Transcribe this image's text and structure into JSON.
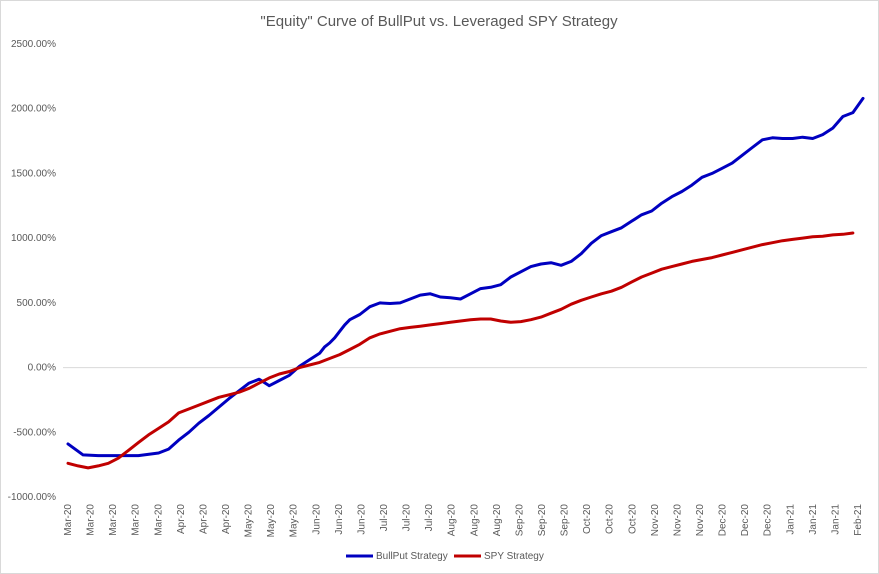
{
  "chart_data": {
    "type": "line",
    "title": "\"Equity\" Curve of BullPut vs. Leveraged SPY Strategy",
    "xlabel": "",
    "ylabel": "",
    "ylim": [
      -1000,
      2500
    ],
    "yticks": [
      -1000,
      -500,
      0,
      500,
      1000,
      1500,
      2000,
      2500
    ],
    "ytick_labels": [
      "-1000.00%",
      "-500.00%",
      "0.00%",
      "500.00%",
      "1000.00%",
      "1500.00%",
      "2000.00%",
      "2500.00%"
    ],
    "grid": false,
    "legend_position": "bottom",
    "categories": [
      "Mar-20",
      "Mar-20",
      "Mar-20",
      "Mar-20",
      "Mar-20",
      "Apr-20",
      "Apr-20",
      "Apr-20",
      "May-20",
      "May-20",
      "May-20",
      "Jun-20",
      "Jun-20",
      "Jun-20",
      "Jul-20",
      "Jul-20",
      "Jul-20",
      "Aug-20",
      "Aug-20",
      "Aug-20",
      "Sep-20",
      "Sep-20",
      "Sep-20",
      "Oct-20",
      "Oct-20",
      "Oct-20",
      "Nov-20",
      "Nov-20",
      "Nov-20",
      "Dec-20",
      "Dec-20",
      "Dec-20",
      "Jan-21",
      "Jan-21",
      "Jan-21",
      "Feb-21"
    ],
    "series": [
      {
        "name": "BullPut Strategy",
        "color": "#0000c0",
        "points": [
          [
            0,
            -590
          ],
          [
            1.5,
            -675
          ],
          [
            3,
            -680
          ],
          [
            5,
            -680
          ],
          [
            7,
            -680
          ],
          [
            9,
            -660
          ],
          [
            10,
            -630
          ],
          [
            11,
            -560
          ],
          [
            12,
            -500
          ],
          [
            13,
            -430
          ],
          [
            14,
            -370
          ],
          [
            16,
            -240
          ],
          [
            18,
            -120
          ],
          [
            19,
            -90
          ],
          [
            20,
            -140
          ],
          [
            21,
            -100
          ],
          [
            22,
            -60
          ],
          [
            23,
            10
          ],
          [
            24,
            60
          ],
          [
            25,
            110
          ],
          [
            25.5,
            160
          ],
          [
            26,
            190
          ],
          [
            26.5,
            230
          ],
          [
            27,
            280
          ],
          [
            27.5,
            330
          ],
          [
            28,
            370
          ],
          [
            29,
            410
          ],
          [
            30,
            470
          ],
          [
            31,
            500
          ],
          [
            32,
            495
          ],
          [
            33,
            500
          ],
          [
            34,
            530
          ],
          [
            35,
            560
          ],
          [
            36,
            570
          ],
          [
            37,
            545
          ],
          [
            38,
            540
          ],
          [
            39,
            530
          ],
          [
            40,
            570
          ],
          [
            41,
            610
          ],
          [
            42,
            620
          ],
          [
            43,
            640
          ],
          [
            44,
            700
          ],
          [
            45,
            740
          ],
          [
            46,
            780
          ],
          [
            47,
            800
          ],
          [
            48,
            810
          ],
          [
            49,
            790
          ],
          [
            50,
            820
          ],
          [
            51,
            880
          ],
          [
            52,
            960
          ],
          [
            53,
            1020
          ],
          [
            54,
            1050
          ],
          [
            55,
            1080
          ],
          [
            56,
            1130
          ],
          [
            57,
            1180
          ],
          [
            58,
            1210
          ],
          [
            59,
            1270
          ],
          [
            60,
            1320
          ],
          [
            61,
            1360
          ],
          [
            62,
            1410
          ],
          [
            63,
            1470
          ],
          [
            64,
            1500
          ],
          [
            65,
            1540
          ],
          [
            66,
            1580
          ],
          [
            67,
            1640
          ],
          [
            68,
            1700
          ],
          [
            69,
            1760
          ],
          [
            70,
            1775
          ],
          [
            71,
            1770
          ],
          [
            72,
            1770
          ],
          [
            73,
            1780
          ],
          [
            74,
            1770
          ],
          [
            75,
            1800
          ],
          [
            76,
            1850
          ],
          [
            77,
            1940
          ],
          [
            78,
            1970
          ],
          [
            79,
            2080
          ]
        ]
      },
      {
        "name": "SPY Strategy",
        "color": "#c00000",
        "points": [
          [
            0,
            -740
          ],
          [
            1,
            -760
          ],
          [
            2,
            -775
          ],
          [
            3,
            -760
          ],
          [
            4,
            -740
          ],
          [
            5,
            -700
          ],
          [
            6,
            -640
          ],
          [
            7,
            -580
          ],
          [
            8,
            -520
          ],
          [
            9,
            -470
          ],
          [
            10,
            -420
          ],
          [
            11,
            -350
          ],
          [
            12,
            -320
          ],
          [
            13,
            -290
          ],
          [
            14,
            -260
          ],
          [
            15,
            -230
          ],
          [
            16,
            -210
          ],
          [
            17,
            -190
          ],
          [
            18,
            -160
          ],
          [
            19,
            -120
          ],
          [
            20,
            -80
          ],
          [
            21,
            -50
          ],
          [
            22,
            -30
          ],
          [
            23,
            0
          ],
          [
            24,
            20
          ],
          [
            25,
            40
          ],
          [
            26,
            70
          ],
          [
            27,
            100
          ],
          [
            28,
            140
          ],
          [
            29,
            180
          ],
          [
            30,
            230
          ],
          [
            31,
            260
          ],
          [
            32,
            280
          ],
          [
            33,
            300
          ],
          [
            34,
            310
          ],
          [
            35,
            320
          ],
          [
            36,
            330
          ],
          [
            37,
            340
          ],
          [
            38,
            350
          ],
          [
            39,
            360
          ],
          [
            40,
            370
          ],
          [
            41,
            375
          ],
          [
            42,
            375
          ],
          [
            43,
            360
          ],
          [
            44,
            350
          ],
          [
            45,
            355
          ],
          [
            46,
            370
          ],
          [
            47,
            390
          ],
          [
            48,
            420
          ],
          [
            49,
            450
          ],
          [
            50,
            490
          ],
          [
            51,
            520
          ],
          [
            52,
            545
          ],
          [
            53,
            570
          ],
          [
            54,
            590
          ],
          [
            55,
            620
          ],
          [
            56,
            660
          ],
          [
            57,
            700
          ],
          [
            58,
            730
          ],
          [
            59,
            760
          ],
          [
            60,
            780
          ],
          [
            61,
            800
          ],
          [
            62,
            820
          ],
          [
            63,
            835
          ],
          [
            64,
            850
          ],
          [
            65,
            870
          ],
          [
            66,
            890
          ],
          [
            67,
            910
          ],
          [
            68,
            930
          ],
          [
            69,
            950
          ],
          [
            70,
            965
          ],
          [
            71,
            980
          ],
          [
            72,
            990
          ],
          [
            73,
            1000
          ],
          [
            74,
            1010
          ],
          [
            75,
            1015
          ],
          [
            76,
            1025
          ],
          [
            77,
            1030
          ],
          [
            78,
            1040
          ]
        ]
      }
    ]
  }
}
